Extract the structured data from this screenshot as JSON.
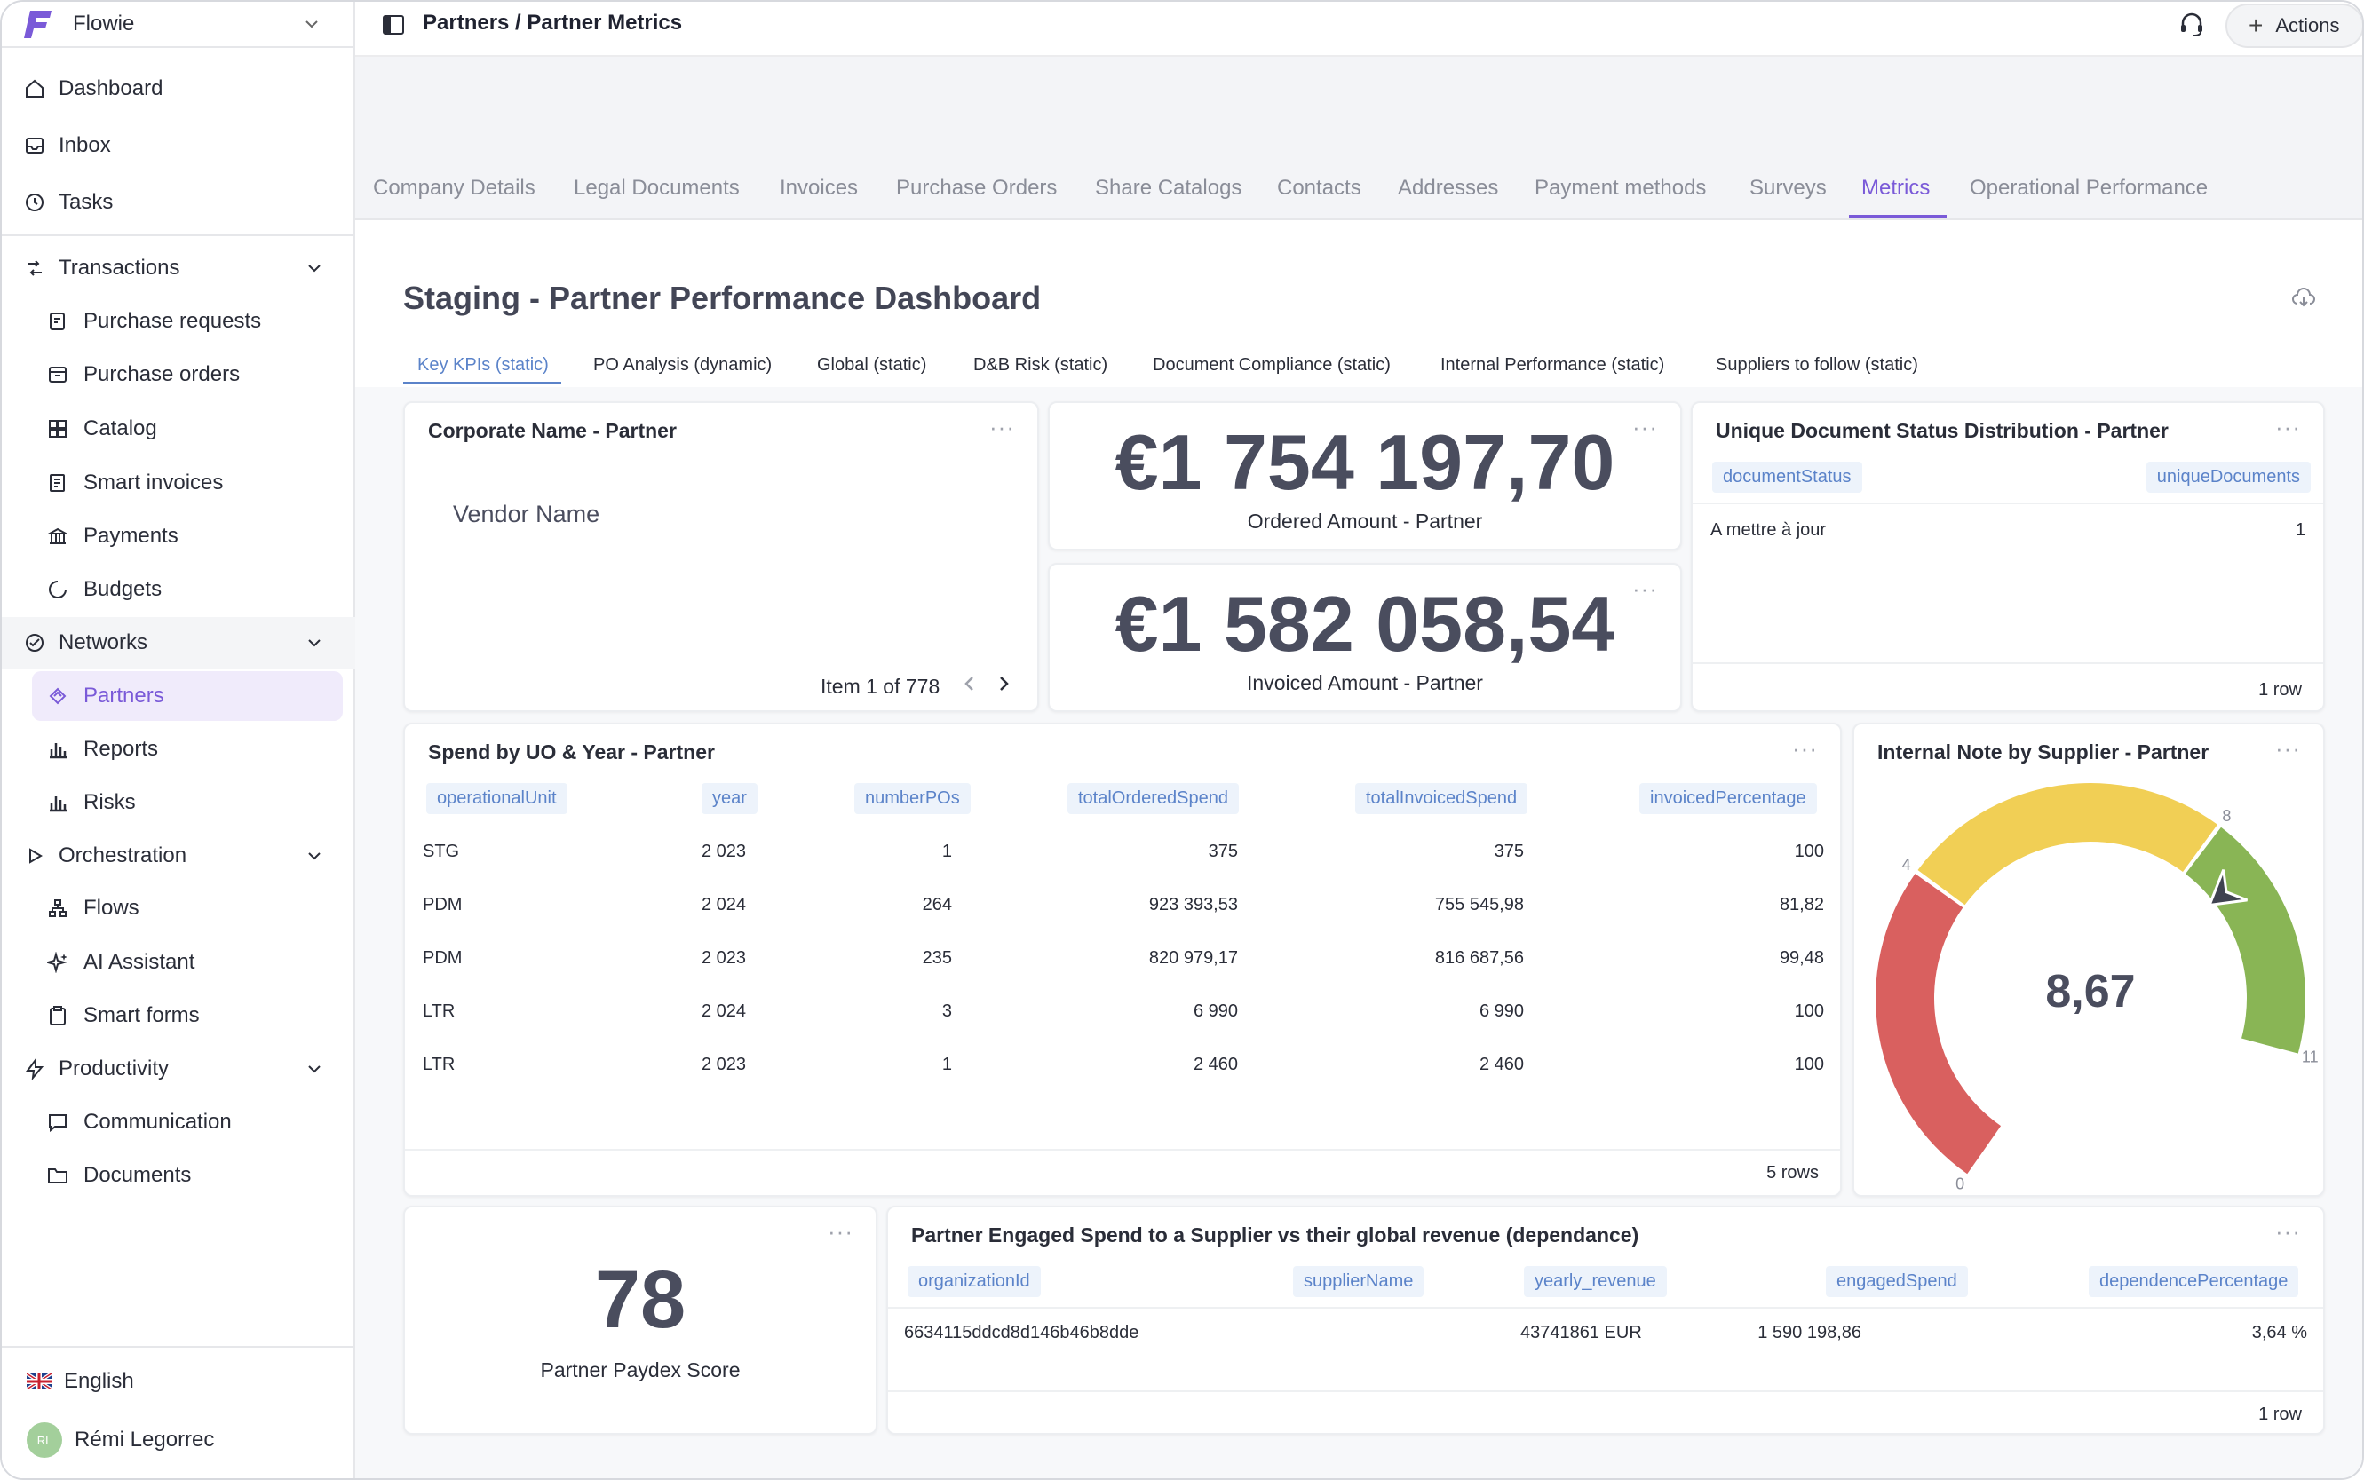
{
  "workspace": {
    "name": "Flowie"
  },
  "sidebar": {
    "top": [
      {
        "label": "Dashboard",
        "icon": "home-icon"
      },
      {
        "label": "Inbox",
        "icon": "inbox-icon"
      },
      {
        "label": "Tasks",
        "icon": "clock-icon"
      }
    ],
    "transactions": {
      "label": "Transactions",
      "items": [
        "Purchase requests",
        "Purchase orders",
        "Catalog",
        "Smart invoices",
        "Payments",
        "Budgets"
      ]
    },
    "networks": {
      "label": "Networks",
      "items": [
        "Partners",
        "Reports",
        "Risks"
      ]
    },
    "orchestration": {
      "label": "Orchestration",
      "items": [
        "Flows",
        "AI Assistant",
        "Smart forms"
      ]
    },
    "productivity": {
      "label": "Productivity",
      "items": [
        "Communication",
        "Documents"
      ]
    },
    "language": "English",
    "user": {
      "initials": "RL",
      "name": "Rémi Legorrec"
    }
  },
  "topbar": {
    "breadcrumb": "Partners / Partner Metrics",
    "actions_label": "Actions"
  },
  "tabs": [
    "Company Details",
    "Legal Documents",
    "Invoices",
    "Purchase Orders",
    "Share Catalogs",
    "Contacts",
    "Addresses",
    "Payment methods",
    "Surveys",
    "Metrics",
    "Operational Performance"
  ],
  "active_tab": "Metrics",
  "dashboard": {
    "title": "Staging - Partner Performance Dashboard",
    "tabs": [
      "Key KPIs (static)",
      "PO Analysis (dynamic)",
      "Global (static)",
      "D&B Risk (static)",
      "Document Compliance (static)",
      "Internal Performance (static)",
      "Suppliers to follow (static)"
    ],
    "corporate": {
      "title": "Corporate Name - Partner",
      "value": "Vendor Name",
      "pagination": "Item 1 of 778"
    },
    "ordered": {
      "value": "€1 754 197,70",
      "label": "Ordered Amount - Partner"
    },
    "invoiced": {
      "value": "€1 582 058,54",
      "label": "Invoiced Amount - Partner"
    },
    "doc_status": {
      "title": "Unique Document Status Distribution - Partner",
      "columns": [
        "documentStatus",
        "uniqueDocuments"
      ],
      "rows": [
        [
          "A mettre à jour",
          "1"
        ]
      ],
      "rowcount": "1 row"
    },
    "spend": {
      "title": "Spend by UO & Year - Partner",
      "columns": [
        "operationalUnit",
        "year",
        "numberPOs",
        "totalOrderedSpend",
        "totalInvoicedSpend",
        "invoicedPercentage"
      ],
      "rows": [
        [
          "STG",
          "2 023",
          "1",
          "375",
          "375",
          "100"
        ],
        [
          "PDM",
          "2 024",
          "264",
          "923 393,53",
          "755 545,98",
          "81,82"
        ],
        [
          "PDM",
          "2 023",
          "235",
          "820 979,17",
          "816 687,56",
          "99,48"
        ],
        [
          "LTR",
          "2 024",
          "3",
          "6 990",
          "6 990",
          "100"
        ],
        [
          "LTR",
          "2 023",
          "1",
          "2 460",
          "2 460",
          "100"
        ]
      ],
      "rowcount": "5 rows"
    },
    "gauge": {
      "title": "Internal Note by Supplier - Partner",
      "value": 8.67,
      "value_label": "8,67",
      "min": 0,
      "max": 11,
      "ticks": [
        "0",
        "4",
        "8",
        "11"
      ],
      "segments": [
        {
          "from": 0,
          "to": 4,
          "color": "#d9605f"
        },
        {
          "from": 4,
          "to": 8,
          "color": "#f1cf55"
        },
        {
          "from": 8,
          "to": 11,
          "color": "#89b555"
        }
      ]
    },
    "paydex": {
      "value": "78",
      "label": "Partner Paydex Score"
    },
    "dependance": {
      "title": "Partner Engaged Spend to a Supplier vs their global revenue (dependance)",
      "columns": [
        "organizationId",
        "supplierName",
        "yearly_revenue",
        "engagedSpend",
        "dependencePercentage"
      ],
      "rows": [
        [
          "6634115ddcd8d146b46b8dde",
          "",
          "43741861 EUR",
          "1 590 198,86",
          "3,64 %"
        ]
      ],
      "rowcount": "1 row"
    }
  },
  "colors": {
    "accent": "#7a5ad8",
    "chip_text": "#5b83c9",
    "chip_bg": "#edf3fb"
  }
}
